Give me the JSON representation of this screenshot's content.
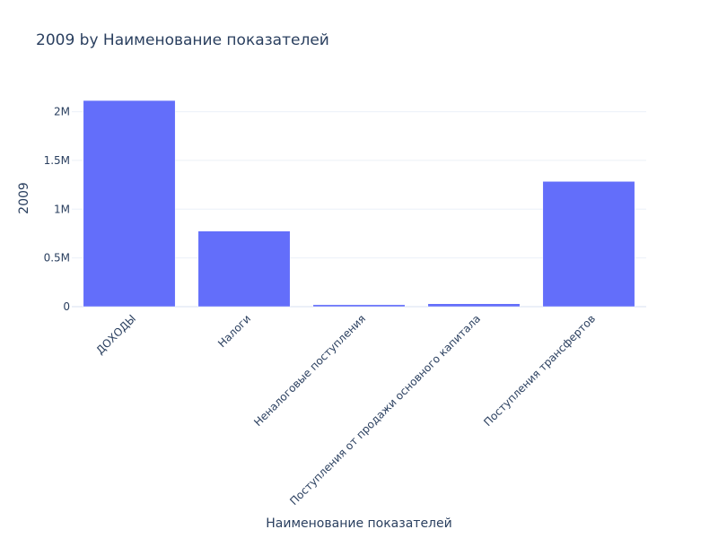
{
  "chart_data": {
    "type": "bar",
    "title": "2009 by Наименование показателей",
    "xlabel": "Наименование показателей",
    "ylabel": "2009",
    "categories": [
      "ДОХОДЫ",
      "Налоги",
      "Неналоговые поступления",
      "Поступления от продажи основного капитала",
      "Поступления трансфертов"
    ],
    "series": [
      {
        "values": [
          2115000,
          775000,
          20000,
          30000,
          1285000
        ]
      }
    ],
    "ylim": [
      0,
      2226000
    ],
    "yticks": [
      {
        "value": 0,
        "label": "0"
      },
      {
        "value": 500000,
        "label": "0.5M"
      },
      {
        "value": 1000000,
        "label": "1M"
      },
      {
        "value": 1500000,
        "label": "1.5M"
      },
      {
        "value": 2000000,
        "label": "2M"
      }
    ],
    "grid": true,
    "legend": "none",
    "colors": {
      "bar": "#636efa",
      "text": "#2a3f5f",
      "grid": "#ebf0f8"
    }
  }
}
